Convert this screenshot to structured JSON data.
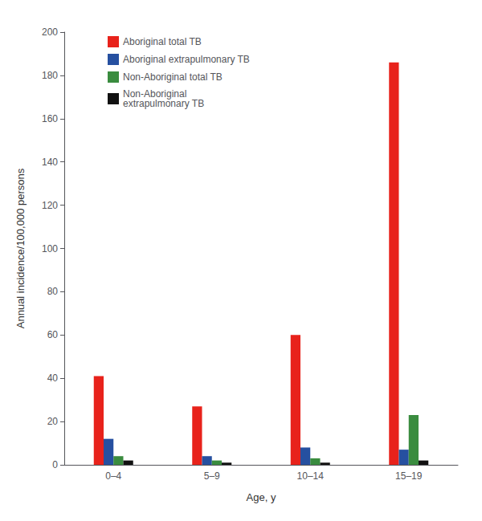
{
  "chart_data": {
    "type": "bar",
    "xlabel": "Age, y",
    "ylabel": "Annual incidence/100,000 persons",
    "categories": [
      "0–4",
      "5–9",
      "10–14",
      "15–19"
    ],
    "series": [
      {
        "name": "Aboriginal total TB",
        "color": "#e8221b",
        "values": [
          41,
          27,
          60,
          186
        ]
      },
      {
        "name": "Aboriginal extrapulmonary TB",
        "color": "#2650a0",
        "values": [
          12,
          4,
          8,
          7
        ]
      },
      {
        "name": "Non-Aboriginal total TB",
        "color": "#3a8c3f",
        "values": [
          4,
          2,
          3,
          23
        ]
      },
      {
        "name": "Non-Aboriginal\nextrapulmonary TB",
        "color": "#111111",
        "values": [
          2,
          1,
          1,
          2
        ]
      }
    ],
    "ylim": [
      0,
      200
    ],
    "yticks": [
      0,
      20,
      40,
      60,
      80,
      100,
      120,
      140,
      160,
      180,
      200
    ],
    "grid": false,
    "legend": "upper left"
  }
}
